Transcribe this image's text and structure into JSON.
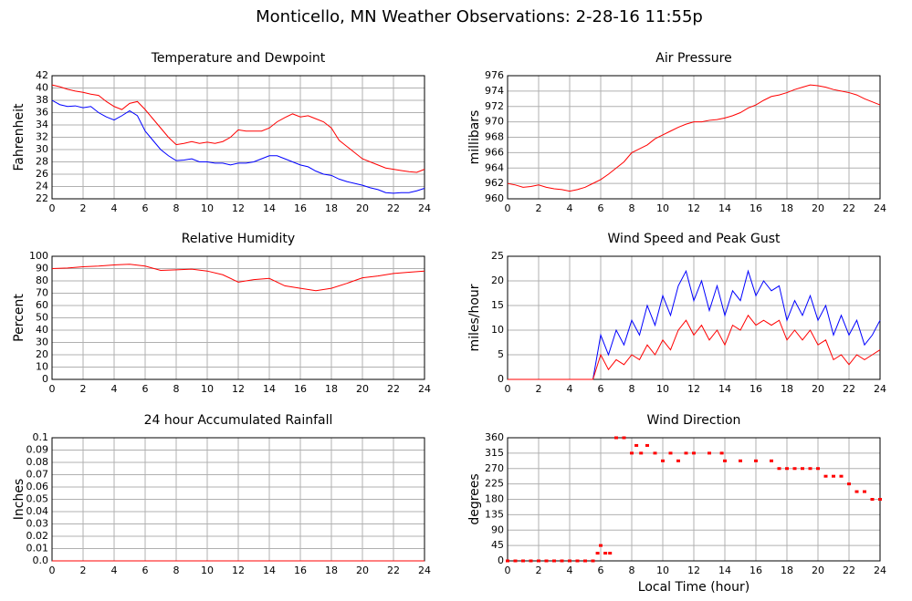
{
  "title": "Monticello, MN Weather Observations: 2-28-16 11:55p",
  "chart_data": [
    {
      "type": "line",
      "title": "Temperature and Dewpoint",
      "ylabel": "Fahrenheit",
      "x": [
        0,
        0.5,
        1,
        1.5,
        2,
        2.5,
        3,
        3.5,
        4,
        4.5,
        5,
        5.5,
        6,
        6.5,
        7,
        7.5,
        8,
        8.5,
        9,
        9.5,
        10,
        10.5,
        11,
        11.5,
        12,
        12.5,
        13,
        13.5,
        14,
        14.5,
        15,
        15.5,
        16,
        16.5,
        17,
        17.5,
        18,
        18.5,
        19,
        19.5,
        20,
        20.5,
        21,
        21.5,
        22,
        22.5,
        23,
        23.5,
        24
      ],
      "series": [
        {
          "name": "Temperature",
          "color": "#ff0000",
          "values": [
            40.5,
            40.2,
            39.8,
            39.5,
            39.3,
            39.0,
            38.8,
            37.8,
            37.0,
            36.5,
            37.5,
            37.8,
            36.5,
            35,
            33.5,
            32,
            30.8,
            31,
            31.3,
            31,
            31.2,
            31,
            31.3,
            32,
            33.2,
            33,
            33,
            33,
            33.5,
            34.5,
            35.2,
            35.8,
            35.3,
            35.5,
            35,
            34.5,
            33.5,
            31.5,
            30.5,
            29.5,
            28.5,
            28,
            27.5,
            27,
            26.8,
            26.6,
            26.4,
            26.3,
            26.8
          ]
        },
        {
          "name": "Dewpoint",
          "color": "#0000ff",
          "values": [
            38,
            37.3,
            37,
            37.1,
            36.8,
            37,
            36,
            35.3,
            34.8,
            35.5,
            36.3,
            35.5,
            33,
            31.5,
            30,
            29,
            28.2,
            28.3,
            28.5,
            28,
            28,
            27.8,
            27.8,
            27.5,
            27.8,
            27.8,
            28,
            28.5,
            29,
            29,
            28.5,
            28,
            27.5,
            27.2,
            26.5,
            26,
            25.8,
            25.2,
            24.8,
            24.5,
            24.2,
            23.8,
            23.5,
            23,
            22.9,
            23,
            23,
            23.3,
            23.7
          ]
        }
      ],
      "xlim": [
        0,
        24
      ],
      "xticks": [
        0,
        2,
        4,
        6,
        8,
        10,
        12,
        14,
        16,
        18,
        20,
        22,
        24
      ],
      "ylim": [
        22,
        42
      ],
      "yticks": [
        22,
        24,
        26,
        28,
        30,
        32,
        34,
        36,
        38,
        40,
        42
      ],
      "grid": true
    },
    {
      "type": "line",
      "title": "Air Pressure",
      "ylabel": "millibars",
      "x": [
        0,
        0.5,
        1,
        1.5,
        2,
        2.5,
        3,
        3.5,
        4,
        4.5,
        5,
        5.5,
        6,
        6.5,
        7,
        7.5,
        8,
        8.5,
        9,
        9.5,
        10,
        10.5,
        11,
        11.5,
        12,
        12.5,
        13,
        13.5,
        14,
        14.5,
        15,
        15.5,
        16,
        16.5,
        17,
        17.5,
        18,
        18.5,
        19,
        19.5,
        20,
        20.5,
        21,
        21.5,
        22,
        22.5,
        23,
        23.5,
        24
      ],
      "series": [
        {
          "name": "Pressure",
          "color": "#ff0000",
          "values": [
            962,
            961.8,
            961.5,
            961.6,
            961.8,
            961.5,
            961.3,
            961.2,
            961,
            961.2,
            961.5,
            962,
            962.5,
            963.2,
            964,
            964.8,
            966,
            966.5,
            967,
            967.8,
            968.3,
            968.8,
            969.3,
            969.7,
            970,
            970,
            970.2,
            970.3,
            970.5,
            970.8,
            971.2,
            971.8,
            972.2,
            972.8,
            973.3,
            973.5,
            973.8,
            974.2,
            974.5,
            974.8,
            974.7,
            974.5,
            974.2,
            974,
            973.8,
            973.5,
            973,
            972.6,
            972.2
          ]
        }
      ],
      "xlim": [
        0,
        24
      ],
      "xticks": [
        0,
        2,
        4,
        6,
        8,
        10,
        12,
        14,
        16,
        18,
        20,
        22,
        24
      ],
      "ylim": [
        960,
        976
      ],
      "yticks": [
        960,
        962,
        964,
        966,
        968,
        970,
        972,
        974,
        976
      ],
      "grid": true
    },
    {
      "type": "line",
      "title": "Relative Humidity",
      "ylabel": "Percent",
      "x": [
        0,
        1,
        2,
        3,
        4,
        5,
        6,
        7,
        8,
        9,
        10,
        11,
        12,
        13,
        14,
        15,
        16,
        17,
        18,
        19,
        20,
        21,
        22,
        23,
        24
      ],
      "series": [
        {
          "name": "Humidity",
          "color": "#ff0000",
          "values": [
            90,
            90.5,
            91.5,
            92,
            93,
            93.5,
            92,
            88.5,
            89,
            89.5,
            88,
            85,
            79,
            81,
            82,
            76,
            74,
            72,
            74,
            78,
            82.5,
            84,
            86,
            87,
            88
          ]
        }
      ],
      "xlim": [
        0,
        24
      ],
      "xticks": [
        0,
        2,
        4,
        6,
        8,
        10,
        12,
        14,
        16,
        18,
        20,
        22,
        24
      ],
      "ylim": [
        0,
        100
      ],
      "yticks": [
        0,
        10,
        20,
        30,
        40,
        50,
        60,
        70,
        80,
        90,
        100
      ],
      "grid": true
    },
    {
      "type": "line",
      "title": "Wind Speed and Peak Gust",
      "ylabel": "miles/hour",
      "x": [
        0,
        0.5,
        1,
        1.5,
        2,
        2.5,
        3,
        3.5,
        4,
        4.5,
        5,
        5.5,
        6,
        6.5,
        7,
        7.5,
        8,
        8.5,
        9,
        9.5,
        10,
        10.5,
        11,
        11.5,
        12,
        12.5,
        13,
        13.5,
        14,
        14.5,
        15,
        15.5,
        16,
        16.5,
        17,
        17.5,
        18,
        18.5,
        19,
        19.5,
        20,
        20.5,
        21,
        21.5,
        22,
        22.5,
        23,
        23.5,
        24
      ],
      "series": [
        {
          "name": "Peak Gust",
          "color": "#0000ff",
          "values": [
            0,
            0,
            0,
            0,
            0,
            0,
            0,
            0,
            0,
            0,
            0,
            0,
            9,
            5,
            10,
            7,
            12,
            9,
            15,
            11,
            17,
            13,
            19,
            22,
            16,
            20,
            14,
            19,
            13,
            18,
            16,
            22,
            17,
            20,
            18,
            19,
            12,
            16,
            13,
            17,
            12,
            15,
            9,
            13,
            9,
            12,
            7,
            9,
            12
          ]
        },
        {
          "name": "Wind Speed",
          "color": "#ff0000",
          "values": [
            0,
            0,
            0,
            0,
            0,
            0,
            0,
            0,
            0,
            0,
            0,
            0,
            5,
            2,
            4,
            3,
            5,
            4,
            7,
            5,
            8,
            6,
            10,
            12,
            9,
            11,
            8,
            10,
            7,
            11,
            10,
            13,
            11,
            12,
            11,
            12,
            8,
            10,
            8,
            10,
            7,
            8,
            4,
            5,
            3,
            5,
            4,
            5,
            6
          ]
        }
      ],
      "xlim": [
        0,
        24
      ],
      "xticks": [
        0,
        2,
        4,
        6,
        8,
        10,
        12,
        14,
        16,
        18,
        20,
        22,
        24
      ],
      "ylim": [
        0,
        25
      ],
      "yticks": [
        0,
        5,
        10,
        15,
        20,
        25
      ],
      "grid": true
    },
    {
      "type": "line",
      "title": "24 hour Accumulated Rainfall",
      "ylabel": "Inches",
      "x": [
        0,
        24
      ],
      "series": [
        {
          "name": "Rainfall",
          "color": "#ff0000",
          "values": [
            0,
            0
          ]
        }
      ],
      "xlim": [
        0,
        24
      ],
      "xticks": [
        0,
        2,
        4,
        6,
        8,
        10,
        12,
        14,
        16,
        18,
        20,
        22,
        24
      ],
      "ylim": [
        0,
        0.1
      ],
      "yticks": [
        {
          "value": 0,
          "label": "0.0"
        },
        0.01,
        0.02,
        0.03,
        0.04,
        0.05,
        0.06,
        0.07,
        0.08,
        0.09,
        0.1
      ],
      "grid": true
    },
    {
      "type": "scatter",
      "title": "Wind Direction",
      "ylabel": "degrees",
      "xlabel": "Local Time (hour)",
      "x": [
        0,
        0.5,
        1,
        1.5,
        2,
        2.5,
        3,
        3.5,
        4,
        4.5,
        5,
        5.5,
        5.8,
        6,
        6.3,
        6.6,
        7,
        7.5,
        8,
        8.3,
        8.6,
        9,
        9.5,
        10,
        10.5,
        11,
        11.5,
        12,
        13,
        13.8,
        14,
        15,
        16,
        17,
        17.5,
        18,
        18.5,
        19,
        19.5,
        20,
        20.5,
        21,
        21.5,
        22,
        22.5,
        23,
        23.5,
        24
      ],
      "series": [
        {
          "name": "Direction",
          "color": "#ff0000",
          "values": [
            0,
            0,
            0,
            0,
            0,
            0,
            0,
            0,
            0,
            0,
            0,
            0,
            22.5,
            45,
            22.5,
            22.5,
            360,
            360,
            315,
            337.5,
            315,
            337.5,
            315,
            292.5,
            315,
            292.5,
            315,
            315,
            315,
            315,
            292.5,
            292.5,
            292.5,
            292.5,
            270,
            270,
            270,
            270,
            270,
            270,
            247.5,
            247.5,
            247.5,
            225,
            202.5,
            202.5,
            180,
            180
          ]
        }
      ],
      "xlim": [
        0,
        24
      ],
      "xticks": [
        0,
        2,
        4,
        6,
        8,
        10,
        12,
        14,
        16,
        18,
        20,
        22,
        24
      ],
      "ylim": [
        0,
        360
      ],
      "yticks": [
        0,
        45,
        90,
        135,
        180,
        225,
        270,
        315,
        360
      ],
      "grid": true
    }
  ]
}
